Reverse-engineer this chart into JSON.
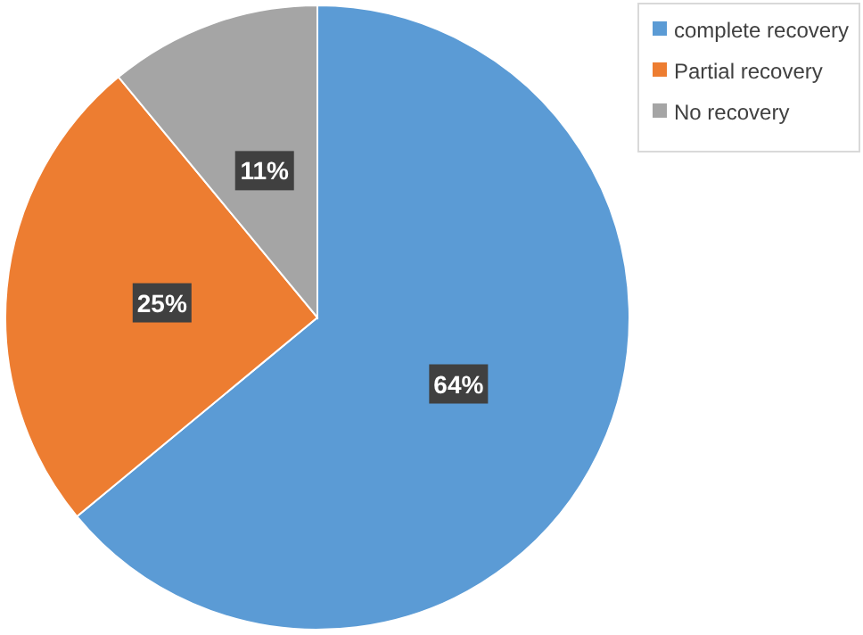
{
  "chart_data": {
    "type": "pie",
    "categories": [
      "complete recovery",
      "Partial recovery",
      "No recovery"
    ],
    "values": [
      64,
      25,
      11
    ],
    "colors": [
      "#5b9bd5",
      "#ed7d31",
      "#a5a5a5"
    ],
    "value_labels": [
      "64%",
      "25%",
      "11%"
    ],
    "legend": "top right"
  }
}
